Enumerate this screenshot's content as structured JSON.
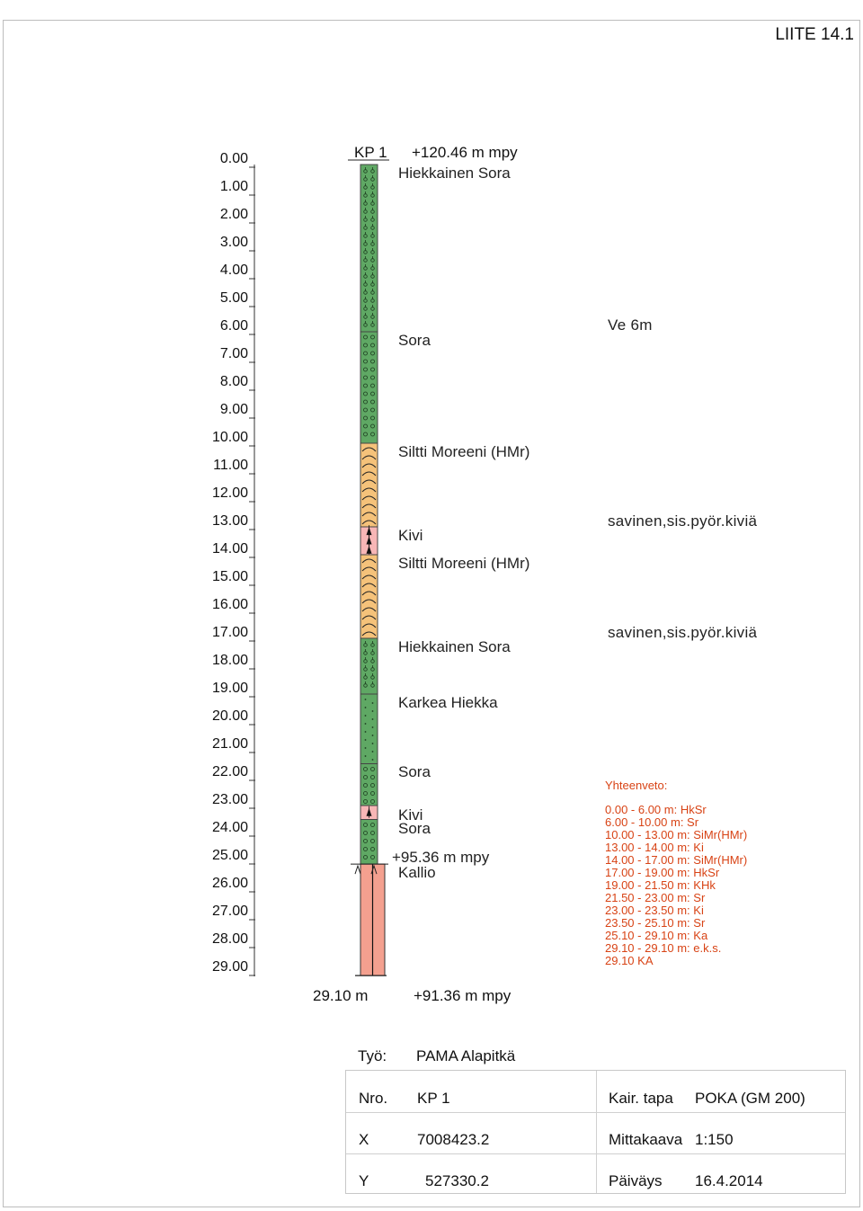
{
  "appendix": "LIITE 14.1",
  "depth_scale": [
    "0.00",
    "1.00",
    "2.00",
    "3.00",
    "4.00",
    "5.00",
    "6.00",
    "7.00",
    "8.00",
    "9.00",
    "10.00",
    "11.00",
    "12.00",
    "13.00",
    "14.00",
    "15.00",
    "16.00",
    "17.00",
    "18.00",
    "19.00",
    "20.00",
    "21.00",
    "22.00",
    "23.00",
    "24.00",
    "25.00",
    "26.00",
    "27.00",
    "28.00",
    "29.00"
  ],
  "boring": {
    "id": "KP 1",
    "top_level": "+120.46 m mpy",
    "rock_level": "+95.36 m mpy",
    "rock_label": "Kallio",
    "end_depth": "29.10 m",
    "end_level": "+91.36 m mpy"
  },
  "layers": [
    {
      "from": 0.0,
      "to": 6.0,
      "label": "Hiekkainen Sora",
      "pattern": "HkSr",
      "color": "#5fa864"
    },
    {
      "from": 6.0,
      "to": 10.0,
      "label": "Sora",
      "pattern": "Sr",
      "color": "#5fa864"
    },
    {
      "from": 10.0,
      "to": 13.0,
      "label": "Siltti Moreeni (HMr)",
      "pattern": "SiMr",
      "color": "#f5c27a"
    },
    {
      "from": 13.0,
      "to": 14.0,
      "label": "Kivi",
      "pattern": "Ki",
      "color": "#f7b6b6"
    },
    {
      "from": 14.0,
      "to": 17.0,
      "label": "Siltti Moreeni (HMr)",
      "pattern": "SiMr",
      "color": "#f5c27a"
    },
    {
      "from": 17.0,
      "to": 19.0,
      "label": "Hiekkainen Sora",
      "pattern": "HkSr",
      "color": "#5fa864"
    },
    {
      "from": 19.0,
      "to": 21.5,
      "label": "Karkea Hiekka",
      "pattern": "KHk",
      "color": "#5fa864"
    },
    {
      "from": 21.5,
      "to": 23.0,
      "label": "Sora",
      "pattern": "Sr",
      "color": "#5fa864"
    },
    {
      "from": 23.0,
      "to": 23.5,
      "label": "Kivi",
      "pattern": "Ki",
      "color": "#f7b6b6"
    },
    {
      "from": 23.5,
      "to": 25.1,
      "label": "Sora",
      "pattern": "Sr",
      "color": "#5fa864"
    },
    {
      "from": 25.1,
      "to": 29.1,
      "label": "",
      "pattern": "Ka",
      "color": "#f4a08f"
    }
  ],
  "notes": [
    {
      "depth": 6.0,
      "text": "Ve 6m"
    },
    {
      "depth": 13.0,
      "text": "savinen,sis.pyör.kiviä"
    },
    {
      "depth": 17.0,
      "text": "savinen,sis.pyör.kiviä"
    }
  ],
  "summary": {
    "title": "Yhteenveto:",
    "lines": [
      "0.00 - 6.00 m: HkSr",
      "6.00 - 10.00 m: Sr",
      "10.00 - 13.00 m: SiMr(HMr)",
      "13.00 - 14.00 m: Ki",
      "14.00 - 17.00 m: SiMr(HMr)",
      "17.00 - 19.00 m: HkSr",
      "19.00 - 21.50 m: KHk",
      "21.50 - 23.00 m: Sr",
      "23.00 - 23.50 m: Ki",
      "23.50 - 25.10 m: Sr",
      "25.10 - 29.10 m: Ka",
      "29.10 - 29.10 m: e.k.s.",
      "29.10 KA"
    ]
  },
  "info": {
    "work_label": "Työ:",
    "work_value": "PAMA Alapitkä",
    "nro_label": "Nro.",
    "nro_value": "KP 1",
    "method_label": "Kair. tapa",
    "method_value": "POKA (GM 200)",
    "x_label": "X",
    "x_value": "7008423.2",
    "scale_label": "Mittakaava",
    "scale_value": "1:150",
    "y_label": "Y",
    "y_value": "527330.2",
    "date_label": "Päiväys",
    "date_value": "16.4.2014"
  },
  "colors": {
    "gravel_green": "#5fa864",
    "silt_till_orange": "#f5c27a",
    "stone_pink": "#f7b6b6",
    "bedrock_salmon": "#f4a08f",
    "summary_red": "#d84315"
  }
}
